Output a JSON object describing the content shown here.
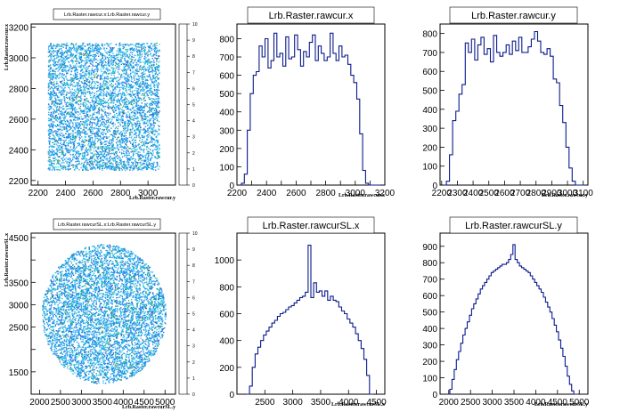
{
  "chart_data": [
    {
      "type": "heatmap",
      "title": "Lrb.Raster.rawcur.x:Lrb.Raster.rawcur.y",
      "xlabel": "Lrb.Raster.rawcur.y",
      "ylabel": "Lrb.Raster.rawcur.x",
      "xlim": [
        2150,
        3200
      ],
      "ylim": [
        2170,
        3220
      ],
      "xticks": [
        "2200",
        "2400",
        "2600",
        "2800",
        "3000"
      ],
      "yticks": [
        "2200",
        "2400",
        "2600",
        "2800",
        "3000",
        "3200"
      ],
      "region": {
        "shape": "rect",
        "x": [
          2270,
          3080
        ],
        "y": [
          2270,
          3100
        ]
      },
      "colorbar": [
        "0",
        "1",
        "2",
        "3",
        "4",
        "5",
        "6",
        "7",
        "8",
        "9",
        "10"
      ],
      "zlim": [
        0,
        10
      ]
    },
    {
      "type": "line",
      "title": "Lrb.Raster.rawcur.x",
      "xlabel": "Lrb.Raster.rawcur.x",
      "ylabel": "",
      "xlim": [
        2200,
        3200
      ],
      "ylim": [
        0,
        880
      ],
      "xticks": [
        "2200",
        "2300",
        "2400",
        "2500",
        "2600",
        "2700",
        "2800",
        "2900",
        "3000",
        "3100",
        "3200"
      ],
      "xtick_labels": [
        "2200",
        "",
        "2400",
        "",
        "2600",
        "",
        "2800",
        "",
        "3000",
        "",
        "3200"
      ],
      "yticks": [
        "0",
        "100",
        "200",
        "300",
        "400",
        "500",
        "600",
        "700",
        "800"
      ],
      "x": [
        2220,
        2240,
        2260,
        2280,
        2300,
        2320,
        2340,
        2360,
        2380,
        2400,
        2420,
        2440,
        2460,
        2480,
        2500,
        2520,
        2540,
        2560,
        2580,
        2600,
        2620,
        2640,
        2660,
        2680,
        2700,
        2720,
        2740,
        2760,
        2780,
        2800,
        2820,
        2840,
        2860,
        2880,
        2900,
        2920,
        2940,
        2960,
        2980,
        3000,
        3020,
        3040,
        3060,
        3080,
        3100,
        3120,
        3140,
        3160
      ],
      "values": [
        0,
        10,
        60,
        300,
        500,
        600,
        620,
        760,
        700,
        800,
        640,
        680,
        830,
        700,
        720,
        650,
        810,
        690,
        700,
        820,
        740,
        650,
        730,
        700,
        780,
        820,
        680,
        760,
        720,
        680,
        700,
        830,
        720,
        680,
        760,
        700,
        710,
        660,
        600,
        560,
        470,
        280,
        80,
        10,
        0,
        0,
        0,
        0
      ]
    },
    {
      "type": "line",
      "title": "Lrb.Raster.rawcur.y",
      "xlabel": "Lrb.Raster.rawcur.y",
      "ylabel": "",
      "xlim": [
        2190,
        3130
      ],
      "ylim": [
        0,
        850
      ],
      "xticks": [
        "2200",
        "2300",
        "2400",
        "2500",
        "2600",
        "2700",
        "2800",
        "2900",
        "3000",
        "3100"
      ],
      "yticks": [
        "0",
        "100",
        "200",
        "300",
        "400",
        "500",
        "600",
        "700",
        "800"
      ],
      "x": [
        2220,
        2240,
        2260,
        2280,
        2300,
        2320,
        2340,
        2360,
        2380,
        2400,
        2420,
        2440,
        2460,
        2480,
        2500,
        2520,
        2540,
        2560,
        2580,
        2600,
        2620,
        2640,
        2660,
        2680,
        2700,
        2720,
        2740,
        2760,
        2780,
        2800,
        2820,
        2840,
        2860,
        2880,
        2900,
        2920,
        2940,
        2960,
        2980,
        3000,
        3020,
        3040,
        3060,
        3080,
        3100
      ],
      "values": [
        0,
        20,
        160,
        340,
        390,
        480,
        530,
        750,
        700,
        770,
        660,
        740,
        780,
        690,
        720,
        650,
        790,
        700,
        680,
        700,
        740,
        690,
        760,
        710,
        780,
        700,
        700,
        730,
        770,
        810,
        760,
        700,
        690,
        720,
        680,
        560,
        540,
        420,
        330,
        200,
        90,
        20,
        0,
        0,
        0
      ]
    },
    {
      "type": "heatmap",
      "title": "Lrb.Raster.rawcurSL.x:Lrb.Raster.rawcurSL.y",
      "xlabel": "Lrb.Raster.rawcurSL.y",
      "ylabel": "Lrb.Raster.rawcurSL.x",
      "xlim": [
        1800,
        5250
      ],
      "ylim": [
        1000,
        4600
      ],
      "xticks": [
        "2000",
        "2500",
        "3000",
        "3500",
        "4000",
        "4500",
        "5000"
      ],
      "yticks": [
        "1500",
        "2000",
        "2500",
        "3000",
        "3500",
        "4000",
        "4500"
      ],
      "ytick_labels": [
        "1500",
        "",
        "2500",
        "3000",
        "3500",
        "",
        "4500"
      ],
      "region": {
        "shape": "circle",
        "cx": 3530,
        "cy": 2800,
        "r": 1560
      },
      "colorbar": [
        "0",
        "1",
        "2",
        "3",
        "4",
        "5",
        "6",
        "7",
        "8",
        "9",
        "10"
      ],
      "zlim": [
        0,
        10
      ]
    },
    {
      "type": "line",
      "title": "Lrb.Raster.rawcurSL.x",
      "xlabel": "Lrb.Raster.rawcurSL.x",
      "ylabel": "",
      "xlim": [
        2000,
        4650
      ],
      "ylim": [
        0,
        1200
      ],
      "xticks": [
        "2500",
        "3000",
        "3500",
        "4000",
        "4500"
      ],
      "yticks": [
        "0",
        "200",
        "400",
        "600",
        "800",
        "1000"
      ],
      "x": [
        2200,
        2250,
        2300,
        2350,
        2400,
        2450,
        2500,
        2550,
        2600,
        2650,
        2700,
        2750,
        2800,
        2850,
        2900,
        2950,
        3000,
        3050,
        3100,
        3150,
        3200,
        3250,
        3300,
        3350,
        3400,
        3450,
        3500,
        3550,
        3600,
        3650,
        3700,
        3750,
        3800,
        3850,
        3900,
        3950,
        4000,
        4050,
        4100,
        4150,
        4200,
        4250,
        4300,
        4350,
        4400
      ],
      "values": [
        0,
        60,
        200,
        300,
        350,
        400,
        440,
        470,
        500,
        530,
        550,
        580,
        600,
        610,
        630,
        650,
        660,
        680,
        700,
        720,
        730,
        760,
        1110,
        720,
        830,
        760,
        770,
        730,
        770,
        700,
        730,
        700,
        690,
        650,
        620,
        600,
        560,
        530,
        500,
        450,
        400,
        340,
        260,
        140,
        0
      ]
    },
    {
      "type": "line",
      "title": "Lrb.Raster.rawcurSL.y",
      "xlabel": "Lrb.Raster.rawcurSL.y",
      "ylabel": "",
      "xlim": [
        1800,
        5200
      ],
      "ylim": [
        0,
        980
      ],
      "xticks": [
        "2000",
        "2500",
        "3000",
        "3500",
        "4000",
        "4500",
        "5000"
      ],
      "yticks": [
        "0",
        "100",
        "200",
        "300",
        "400",
        "500",
        "600",
        "700",
        "800",
        "900"
      ],
      "x": [
        2000,
        2050,
        2100,
        2150,
        2200,
        2250,
        2300,
        2350,
        2400,
        2450,
        2500,
        2550,
        2600,
        2650,
        2700,
        2750,
        2800,
        2850,
        2900,
        2950,
        3000,
        3050,
        3100,
        3150,
        3200,
        3250,
        3300,
        3350,
        3400,
        3450,
        3500,
        3550,
        3600,
        3650,
        3700,
        3750,
        3800,
        3850,
        3900,
        3950,
        4000,
        4050,
        4100,
        4150,
        4200,
        4250,
        4300,
        4350,
        4400,
        4450,
        4500,
        4550,
        4600,
        4650,
        4700,
        4750,
        4800,
        4850,
        4900,
        4950
      ],
      "values": [
        0,
        30,
        90,
        150,
        210,
        260,
        310,
        360,
        400,
        440,
        480,
        520,
        550,
        580,
        610,
        640,
        660,
        680,
        700,
        720,
        740,
        750,
        760,
        770,
        780,
        790,
        790,
        800,
        820,
        850,
        910,
        820,
        800,
        780,
        770,
        760,
        750,
        740,
        720,
        700,
        680,
        660,
        640,
        620,
        590,
        560,
        530,
        500,
        460,
        420,
        380,
        330,
        280,
        230,
        170,
        110,
        60,
        20,
        0,
        0
      ]
    }
  ]
}
